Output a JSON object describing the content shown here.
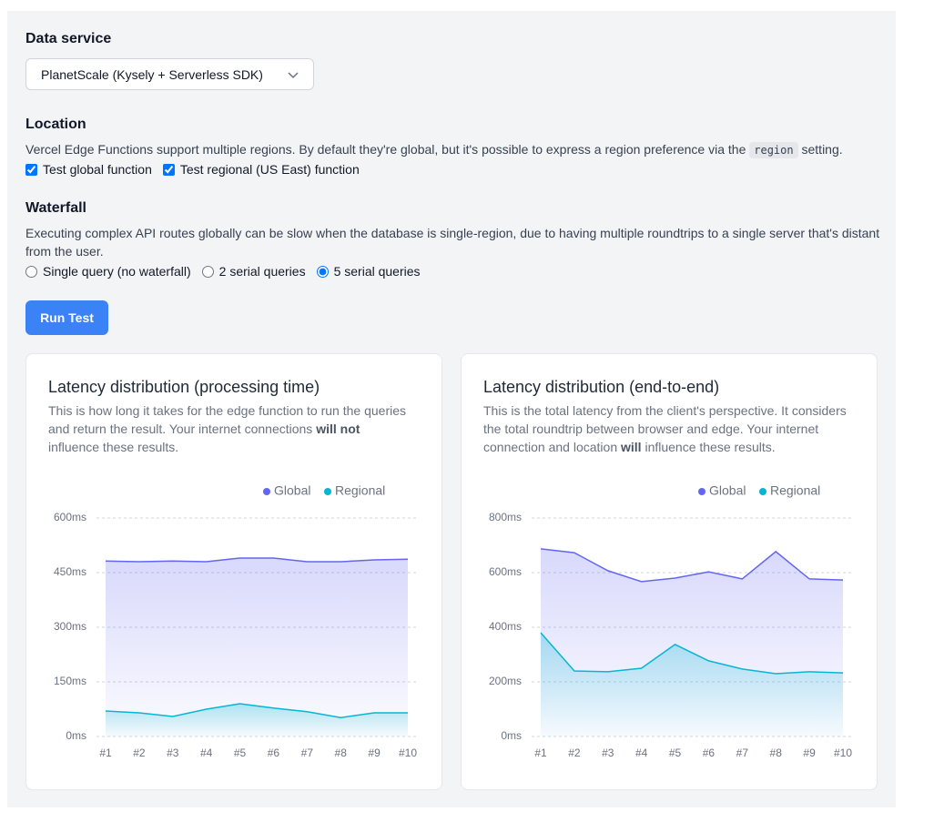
{
  "form": {
    "data_service": {
      "label": "Data service",
      "selected": "PlanetScale (Kysely + Serverless SDK)"
    },
    "location": {
      "label": "Location",
      "description": [
        "Vercel Edge Functions support multiple regions. By default they're global, but it's possible to express a region preference via the ",
        "region",
        " setting."
      ],
      "options": [
        {
          "label": "Test global function",
          "checked": true
        },
        {
          "label": "Test regional (US East) function",
          "checked": true
        }
      ]
    },
    "waterfall": {
      "label": "Waterfall",
      "description": "Executing complex API routes globally can be slow when the database is single-region, due to having multiple roundtrips to a single server that's distant from the user.",
      "options": [
        {
          "label": "Single query (no waterfall)",
          "checked": false
        },
        {
          "label": "2 serial queries",
          "checked": false
        },
        {
          "label": "5 serial queries",
          "checked": true
        }
      ]
    },
    "button": "Run Test"
  },
  "chart_data": [
    {
      "type": "area",
      "title": "Latency distribution (processing time)",
      "subtitle": [
        "This is how long it takes for the edge function to run the queries and return the result. Your internet connections ",
        "will not",
        " influence these results."
      ],
      "categories": [
        "#1",
        "#2",
        "#3",
        "#4",
        "#5",
        "#6",
        "#7",
        "#8",
        "#9",
        "#10"
      ],
      "series": [
        {
          "name": "Global",
          "color": "#6366f1",
          "values": [
            482,
            480,
            482,
            480,
            490,
            490,
            480,
            480,
            485,
            487
          ]
        },
        {
          "name": "Regional",
          "color": "#06b6d4",
          "values": [
            70,
            65,
            55,
            75,
            90,
            78,
            68,
            52,
            65,
            65
          ]
        }
      ],
      "ylim": [
        0,
        600
      ],
      "yticks": [
        {
          "value": 0,
          "label": "0ms"
        },
        {
          "value": 150,
          "label": "150ms"
        },
        {
          "value": 300,
          "label": "300ms"
        },
        {
          "value": 450,
          "label": "450ms"
        },
        {
          "value": 600,
          "label": "600ms"
        }
      ],
      "grid": true
    },
    {
      "type": "area",
      "title": "Latency distribution (end-to-end)",
      "subtitle": [
        "This is the total latency from the client's perspective. It considers the total roundtrip between browser and edge. Your internet connection and location ",
        "will",
        " influence these results."
      ],
      "categories": [
        "#1",
        "#2",
        "#3",
        "#4",
        "#5",
        "#6",
        "#7",
        "#8",
        "#9",
        "#10"
      ],
      "series": [
        {
          "name": "Global",
          "color": "#6366f1",
          "values": [
            687,
            673,
            607,
            567,
            580,
            603,
            577,
            677,
            577,
            573
          ]
        },
        {
          "name": "Regional",
          "color": "#06b6d4",
          "values": [
            380,
            240,
            237,
            250,
            337,
            277,
            247,
            230,
            237,
            233
          ]
        }
      ],
      "ylim": [
        0,
        800
      ],
      "yticks": [
        {
          "value": 0,
          "label": "0ms"
        },
        {
          "value": 200,
          "label": "200ms"
        },
        {
          "value": 400,
          "label": "400ms"
        },
        {
          "value": 600,
          "label": "600ms"
        },
        {
          "value": 800,
          "label": "800ms"
        }
      ],
      "grid": true
    }
  ]
}
